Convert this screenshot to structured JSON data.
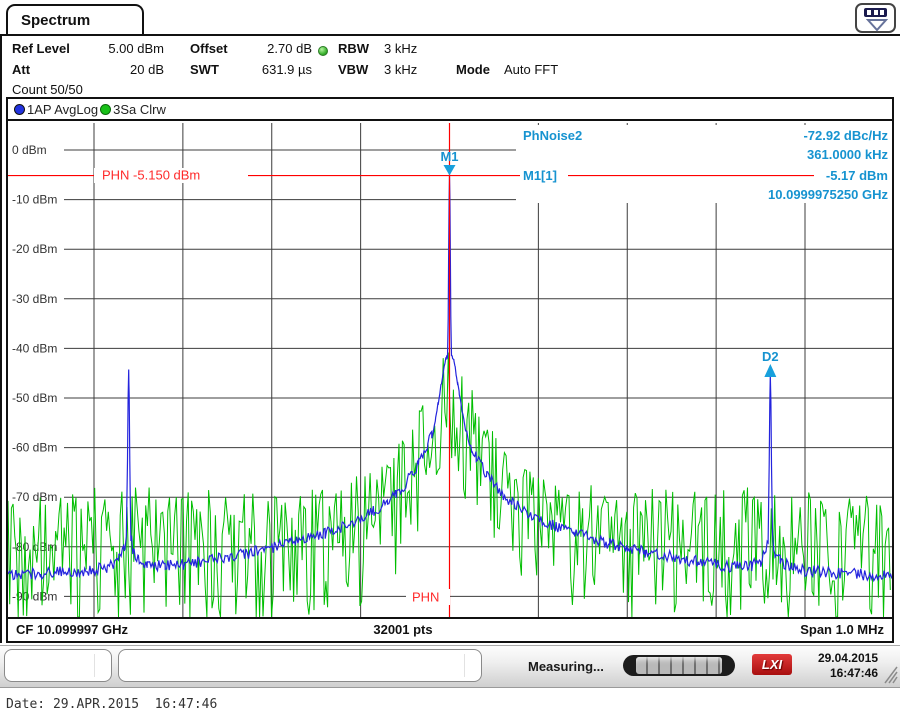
{
  "window": {
    "tab": "Spectrum"
  },
  "header": {
    "ref_level": {
      "label": "Ref Level",
      "value": "5.00 dBm"
    },
    "offset": {
      "label": "Offset",
      "value": "2.70 dB"
    },
    "rbw": {
      "label": "RBW",
      "value": "3 kHz"
    },
    "att": {
      "label": "Att",
      "value": "20 dB"
    },
    "swt": {
      "label": "SWT",
      "value": "631.9 µs"
    },
    "vbw": {
      "label": "VBW",
      "value": "3 kHz"
    },
    "mode": {
      "label": "Mode",
      "value": "Auto FFT"
    },
    "count": "Count 50/50"
  },
  "legend": {
    "trace1": "1AP AvgLog",
    "trace2": "3Sa Clrw"
  },
  "footer": {
    "cf": "CF 10.099997 GHz",
    "pts": "32001 pts",
    "span": "Span 1.0 MHz"
  },
  "statusbar": {
    "measuring": "Measuring...",
    "lxi": "LXI",
    "date": "29.04.2015",
    "time": "16:47:46"
  },
  "bottom_text": "Date: 29.APR.2015  16:47:46",
  "colors": {
    "marker_text": "#1693d0",
    "marker_fill": "#18a0dc",
    "red_line": "#ff0000",
    "phn_text": "#ff2a2a",
    "grid": "#3c3c3c",
    "axis_text": "#333333",
    "trace_avg": "#2424dd",
    "trace_clrw": "#00be00"
  },
  "chart_data": {
    "type": "line",
    "title": "Spectrum",
    "x_axis": {
      "center": "CF 10.099997 GHz",
      "span": "Span 1.0 MHz",
      "points": "32001 pts",
      "span_khz": 1000,
      "divisions": 10,
      "grid": true
    },
    "y_axis": {
      "unit": "dBm",
      "ref_level_dbm": 5.0,
      "db_per_div": 10,
      "tick_values_dbm": [
        0,
        -10,
        -20,
        -30,
        -40,
        -50,
        -60,
        -70,
        -80,
        -90
      ],
      "tick_labels": [
        "0 dBm",
        "-10 dBm",
        "-20 dBm",
        "-30 dBm",
        "-40 dBm",
        "-50 dBm",
        "-60 dBm",
        "-70 dBm",
        "-80 dBm",
        "-90 dBm"
      ]
    },
    "phn_line": {
      "label": "PHN -5.150 dBm",
      "short_label": "PHN",
      "value_dbm": -5.15
    },
    "markers": {
      "phnoise2": {
        "name": "PhNoise2",
        "value": "-72.92 dBc/Hz",
        "freq": "361.0000 kHz"
      },
      "m1": {
        "name": "M1",
        "row_label": "M1[1]",
        "value": "-5.17 dBm",
        "freq": "10.0999975250 GHz",
        "offset_khz": 0,
        "peak_dbm": -5.17
      },
      "d2": {
        "name": "D2",
        "offset_khz": 361,
        "peak_dbm": -45.2
      }
    },
    "series": [
      {
        "name": "1AP AvgLog",
        "detector": "average-log",
        "color": "#2424dd",
        "keypoints_khz_dbm": [
          [
            -500,
            -86
          ],
          [
            -460,
            -85.3
          ],
          [
            -430,
            -85
          ],
          [
            -400,
            -84.6
          ],
          [
            -385,
            -84.2
          ],
          [
            -372,
            -82.5
          ],
          [
            -366,
            -80.5
          ],
          [
            -363.5,
            -78
          ],
          [
            -362.3,
            -62
          ],
          [
            -361.6,
            -50
          ],
          [
            -361,
            -44.3
          ],
          [
            -360.4,
            -50
          ],
          [
            -359.7,
            -64
          ],
          [
            -358.5,
            -78
          ],
          [
            -356,
            -80.8
          ],
          [
            -350,
            -82.5
          ],
          [
            -340,
            -83.5
          ],
          [
            -320,
            -84
          ],
          [
            -300,
            -83.6
          ],
          [
            -280,
            -83
          ],
          [
            -260,
            -82.4
          ],
          [
            -240,
            -81.7
          ],
          [
            -220,
            -81
          ],
          [
            -200,
            -80.3
          ],
          [
            -180,
            -79.4
          ],
          [
            -160,
            -78.4
          ],
          [
            -140,
            -77.3
          ],
          [
            -120,
            -76
          ],
          [
            -100,
            -74.4
          ],
          [
            -85,
            -72.9
          ],
          [
            -70,
            -71
          ],
          [
            -60,
            -69.4
          ],
          [
            -50,
            -67.4
          ],
          [
            -42,
            -65.4
          ],
          [
            -35,
            -63.3
          ],
          [
            -30,
            -61.8
          ],
          [
            -25,
            -59.8
          ],
          [
            -20,
            -57.2
          ],
          [
            -16,
            -54.3
          ],
          [
            -13,
            -51.3
          ],
          [
            -11,
            -49.2
          ],
          [
            -9,
            -46.8
          ],
          [
            -7.5,
            -45.2
          ],
          [
            -6,
            -43.6
          ],
          [
            -5,
            -42.7
          ],
          [
            -4,
            -42.1
          ],
          [
            -3,
            -41.8
          ],
          [
            -2.2,
            -41.6
          ],
          [
            -1.5,
            -34
          ],
          [
            -1,
            -22
          ],
          [
            -0.5,
            -10
          ],
          [
            0,
            -5.17
          ],
          [
            0.5,
            -10
          ],
          [
            1,
            -22
          ],
          [
            1.5,
            -34
          ],
          [
            2.2,
            -41.6
          ],
          [
            3,
            -41.8
          ],
          [
            4,
            -42.1
          ],
          [
            5,
            -42.7
          ],
          [
            6,
            -43.6
          ],
          [
            7.5,
            -45.2
          ],
          [
            9,
            -46.8
          ],
          [
            11,
            -49.2
          ],
          [
            13,
            -51.3
          ],
          [
            16,
            -54.3
          ],
          [
            20,
            -57.2
          ],
          [
            25,
            -59.8
          ],
          [
            30,
            -61.8
          ],
          [
            35,
            -63.3
          ],
          [
            42,
            -65.4
          ],
          [
            50,
            -67.4
          ],
          [
            60,
            -69.4
          ],
          [
            70,
            -71
          ],
          [
            85,
            -72.9
          ],
          [
            100,
            -74.4
          ],
          [
            120,
            -76
          ],
          [
            140,
            -77.3
          ],
          [
            160,
            -78.4
          ],
          [
            180,
            -79.4
          ],
          [
            200,
            -80.3
          ],
          [
            220,
            -81
          ],
          [
            240,
            -81.7
          ],
          [
            260,
            -82.4
          ],
          [
            280,
            -83
          ],
          [
            300,
            -83.6
          ],
          [
            320,
            -84
          ],
          [
            340,
            -83.8
          ],
          [
            350,
            -83
          ],
          [
            356,
            -81.2
          ],
          [
            358.5,
            -78.5
          ],
          [
            359.7,
            -64
          ],
          [
            360.4,
            -51
          ],
          [
            361,
            -45.2
          ],
          [
            361.6,
            -51
          ],
          [
            362.3,
            -63
          ],
          [
            363.5,
            -78.5
          ],
          [
            366,
            -81
          ],
          [
            372,
            -82.8
          ],
          [
            385,
            -84.3
          ],
          [
            400,
            -84.8
          ],
          [
            430,
            -85.2
          ],
          [
            460,
            -85.6
          ],
          [
            500,
            -86
          ]
        ]
      },
      {
        "name": "3Sa Clrw",
        "detector": "sample",
        "color": "#00be00",
        "noise_depth_db": 26,
        "envelope_khz_dbm": [
          [
            -500,
            -73
          ],
          [
            -430,
            -72
          ],
          [
            -361,
            -70.5
          ],
          [
            -300,
            -72
          ],
          [
            -250,
            -71.5
          ],
          [
            -200,
            -71.8
          ],
          [
            -150,
            -70.5
          ],
          [
            -120,
            -69.5
          ],
          [
            -100,
            -68
          ],
          [
            -80,
            -65.5
          ],
          [
            -60,
            -62
          ],
          [
            -45,
            -58
          ],
          [
            -35,
            -55
          ],
          [
            -25,
            -51
          ],
          [
            -18,
            -48
          ],
          [
            -12,
            -45.5
          ],
          [
            -8,
            -43.5
          ],
          [
            -4,
            -42
          ],
          [
            0,
            -41.2
          ],
          [
            4,
            -42
          ],
          [
            8,
            -43.5
          ],
          [
            12,
            -45.5
          ],
          [
            18,
            -48
          ],
          [
            25,
            -51
          ],
          [
            35,
            -55
          ],
          [
            45,
            -58
          ],
          [
            60,
            -62
          ],
          [
            80,
            -65.5
          ],
          [
            100,
            -68
          ],
          [
            120,
            -69.5
          ],
          [
            150,
            -70.5
          ],
          [
            200,
            -71.8
          ],
          [
            250,
            -71.5
          ],
          [
            300,
            -72
          ],
          [
            361,
            -70.5
          ],
          [
            430,
            -72
          ],
          [
            500,
            -73
          ]
        ]
      }
    ]
  }
}
